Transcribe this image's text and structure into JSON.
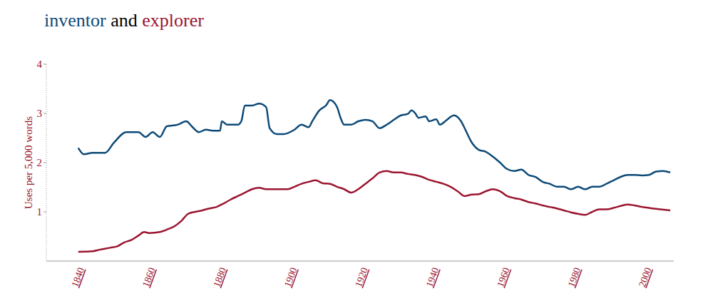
{
  "chart_data": {
    "type": "line",
    "title": "inventor and explorer",
    "y_label": "Uses per 5,000 words",
    "xlim": [
      1831,
      2008
    ],
    "xticks": [
      1840,
      1860,
      1880,
      1900,
      1920,
      1940,
      1960,
      1980,
      2000
    ],
    "ylim": [
      0,
      4
    ],
    "yticks": [
      1,
      2,
      3,
      4
    ],
    "grid": false,
    "series": [
      {
        "name": "inventor",
        "color": "#0d4a78",
        "x": [
          1840,
          1841.6,
          1844,
          1847.6,
          1850,
          1853.6,
          1857,
          1859,
          1861,
          1863,
          1865,
          1868,
          1870.5,
          1872,
          1874,
          1876,
          1878,
          1880,
          1880.5,
          1882,
          1885,
          1886,
          1887,
          1889,
          1891,
          1893,
          1894,
          1896,
          1898,
          1901,
          1903,
          1905,
          1906,
          1908,
          1910,
          1911,
          1913,
          1914,
          1915,
          1917,
          1919,
          1921,
          1923,
          1925,
          1927,
          1929,
          1931,
          1933,
          1934,
          1935,
          1936,
          1938,
          1939,
          1941,
          1942,
          1943,
          1944,
          1946,
          1948,
          1949,
          1951,
          1953,
          1955,
          1957,
          1959,
          1961,
          1963,
          1965,
          1967,
          1969,
          1971,
          1973,
          1975,
          1977,
          1979,
          1981,
          1983,
          1985,
          1987,
          1989,
          1991,
          1993,
          1995,
          1997,
          1999,
          2001,
          2003,
          2005,
          2007
        ],
        "values": [
          2.3,
          2.17,
          2.2,
          2.2,
          2.4,
          2.62,
          2.62,
          2.52,
          2.62,
          2.52,
          2.74,
          2.77,
          2.84,
          2.74,
          2.62,
          2.67,
          2.65,
          2.65,
          2.84,
          2.77,
          2.77,
          2.84,
          3.16,
          3.16,
          3.2,
          3.13,
          2.7,
          2.58,
          2.58,
          2.67,
          2.77,
          2.72,
          2.84,
          3.06,
          3.17,
          3.27,
          3.13,
          2.91,
          2.77,
          2.77,
          2.84,
          2.87,
          2.84,
          2.7,
          2.77,
          2.87,
          2.96,
          2.99,
          3.06,
          3.01,
          2.91,
          2.94,
          2.84,
          2.88,
          2.77,
          2.81,
          2.87,
          2.96,
          2.84,
          2.7,
          2.41,
          2.26,
          2.22,
          2.12,
          2.0,
          1.87,
          1.83,
          1.86,
          1.75,
          1.71,
          1.61,
          1.57,
          1.51,
          1.51,
          1.46,
          1.51,
          1.46,
          1.51,
          1.51,
          1.57,
          1.64,
          1.71,
          1.75,
          1.75,
          1.74,
          1.75,
          1.82,
          1.83,
          1.8
        ]
      },
      {
        "name": "explorer",
        "color": "#9b1530",
        "x": [
          1840,
          1844,
          1846,
          1849,
          1851,
          1853,
          1855,
          1857,
          1858.6,
          1860,
          1863,
          1865,
          1867,
          1869,
          1871,
          1873,
          1875,
          1877,
          1879,
          1881,
          1883,
          1885,
          1887,
          1889,
          1891,
          1893,
          1895,
          1897,
          1899,
          1901,
          1903,
          1905,
          1907,
          1909,
          1911,
          1913,
          1915,
          1917,
          1919,
          1921,
          1923,
          1925,
          1927,
          1929,
          1931,
          1933,
          1935,
          1937,
          1939,
          1941,
          1943,
          1945,
          1947,
          1949,
          1951,
          1953,
          1955,
          1957,
          1959,
          1961,
          1963,
          1965,
          1967,
          1969,
          1971,
          1973,
          1975,
          1977,
          1979,
          1981,
          1983,
          1985,
          1987,
          1989,
          1991,
          1993,
          1995,
          1997,
          1999,
          2001,
          2003,
          2007
        ],
        "values": [
          0.19,
          0.2,
          0.23,
          0.27,
          0.3,
          0.38,
          0.43,
          0.52,
          0.59,
          0.57,
          0.59,
          0.64,
          0.7,
          0.81,
          0.96,
          1.0,
          1.03,
          1.07,
          1.1,
          1.17,
          1.25,
          1.32,
          1.39,
          1.46,
          1.49,
          1.46,
          1.46,
          1.46,
          1.46,
          1.51,
          1.57,
          1.61,
          1.64,
          1.58,
          1.57,
          1.51,
          1.46,
          1.39,
          1.46,
          1.57,
          1.68,
          1.8,
          1.83,
          1.8,
          1.8,
          1.77,
          1.75,
          1.71,
          1.65,
          1.61,
          1.57,
          1.51,
          1.42,
          1.32,
          1.35,
          1.36,
          1.42,
          1.46,
          1.42,
          1.32,
          1.28,
          1.25,
          1.2,
          1.17,
          1.13,
          1.1,
          1.07,
          1.03,
          0.99,
          0.96,
          0.94,
          1.0,
          1.05,
          1.05,
          1.08,
          1.12,
          1.15,
          1.13,
          1.1,
          1.08,
          1.06,
          1.03
        ]
      }
    ]
  }
}
